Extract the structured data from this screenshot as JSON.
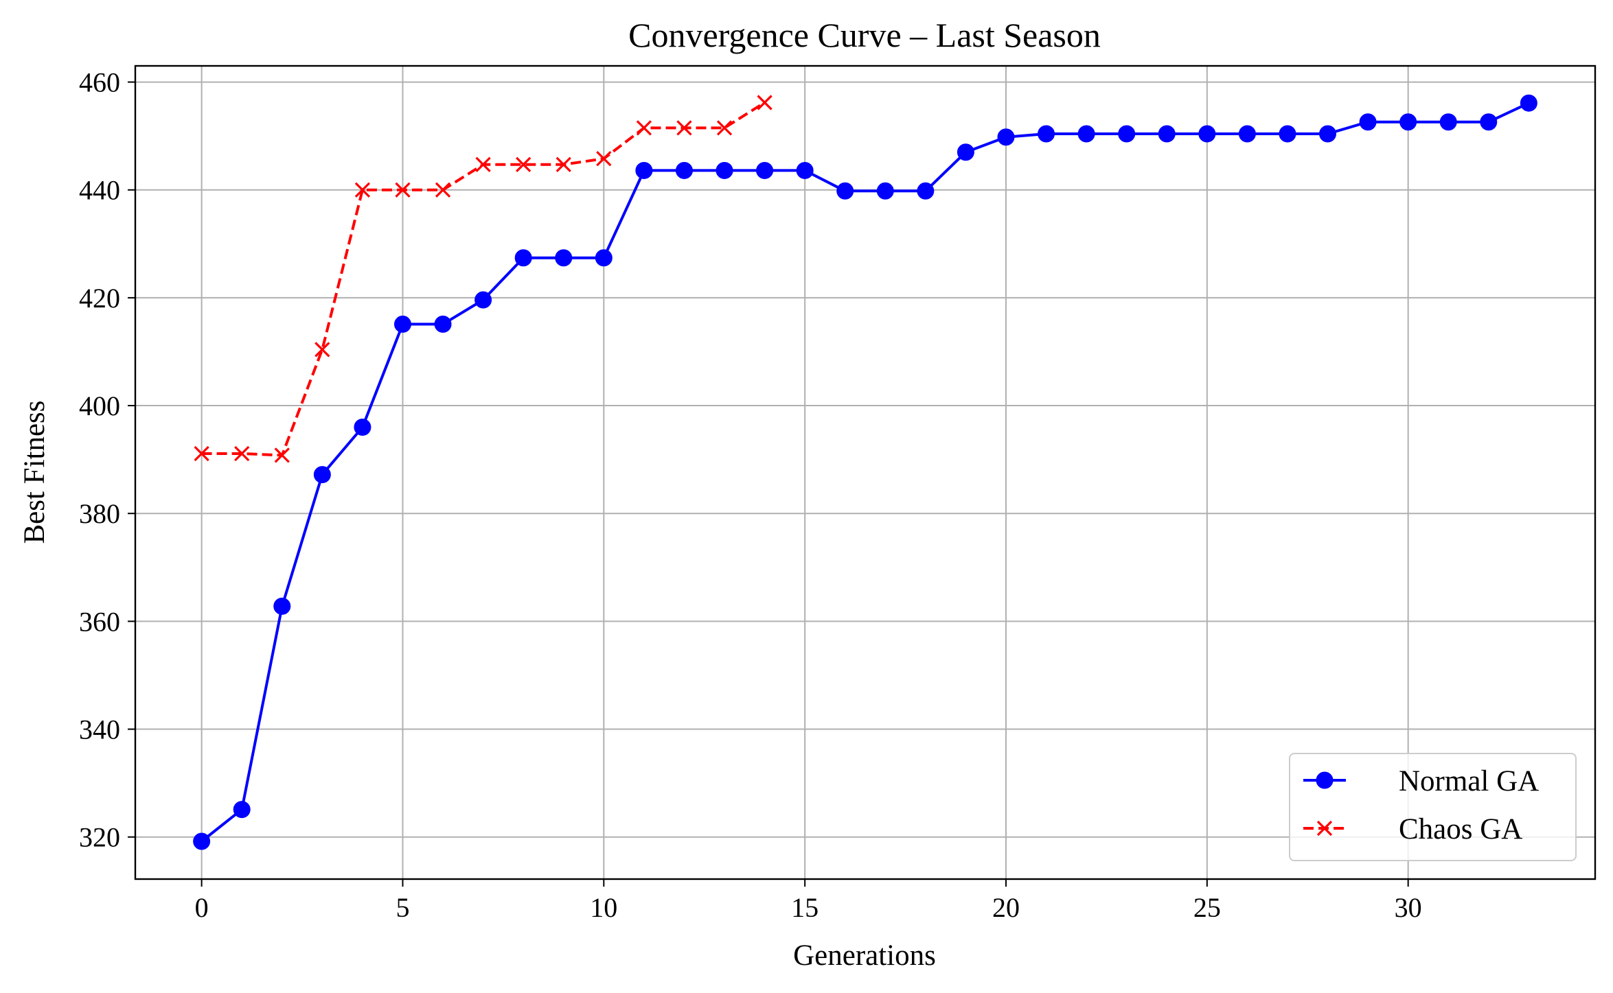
{
  "chart_data": {
    "type": "line",
    "title": "Convergence Curve – Last Season",
    "xlabel": "Generations",
    "ylabel": "Best Fitness",
    "xlim": [
      -1.65,
      34.65
    ],
    "ylim": [
      312.2,
      463.0
    ],
    "xticks": [
      0,
      5,
      10,
      15,
      20,
      25,
      30
    ],
    "yticks": [
      320,
      340,
      360,
      380,
      400,
      420,
      440,
      460
    ],
    "grid": true,
    "legend_position": "lower right",
    "series": [
      {
        "name": "Normal GA",
        "color": "#0000ff",
        "line_style": "solid",
        "marker": "circle",
        "x": [
          0,
          1,
          2,
          3,
          4,
          5,
          6,
          7,
          8,
          9,
          10,
          11,
          12,
          13,
          14,
          15,
          16,
          17,
          18,
          19,
          20,
          21,
          22,
          23,
          24,
          25,
          26,
          27,
          28,
          29,
          30,
          31,
          32,
          33
        ],
        "y": [
          319.2,
          325.1,
          362.8,
          387.2,
          396.0,
          415.1,
          415.1,
          419.6,
          427.4,
          427.4,
          427.4,
          443.6,
          443.6,
          443.6,
          443.6,
          443.6,
          439.8,
          439.8,
          439.8,
          447.0,
          449.8,
          450.4,
          450.4,
          450.4,
          450.4,
          450.4,
          450.4,
          450.4,
          450.4,
          452.6,
          452.6,
          452.6,
          452.6,
          456.1
        ]
      },
      {
        "name": "Chaos GA",
        "color": "#ff0000",
        "line_style": "dashed",
        "marker": "x",
        "x": [
          0,
          1,
          2,
          3,
          4,
          5,
          6,
          7,
          8,
          9,
          10,
          11,
          12,
          13,
          14
        ],
        "y": [
          391.1,
          391.1,
          390.8,
          410.4,
          440.0,
          440.0,
          440.0,
          444.7,
          444.7,
          444.7,
          445.8,
          451.5,
          451.5,
          451.5,
          456.2
        ]
      }
    ]
  }
}
